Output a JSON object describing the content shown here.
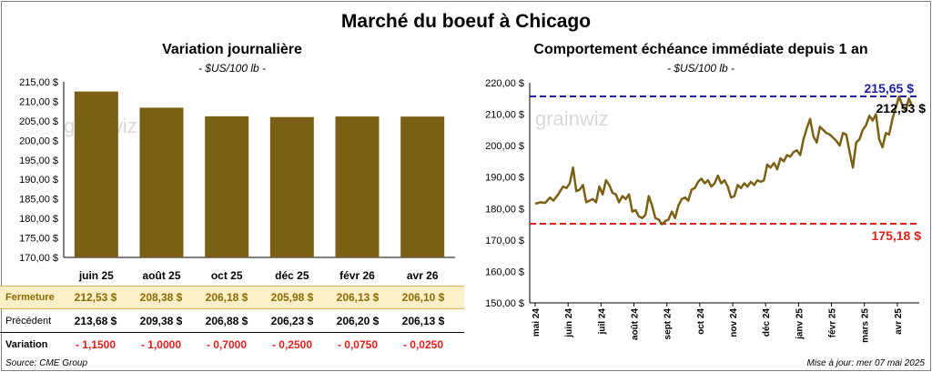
{
  "title": "Marché du boeuf à Chicago",
  "left_panel": {
    "subtitle": "Variation  journalière",
    "unit": "- $US/100 lb -",
    "watermark": "grainwiz"
  },
  "right_panel": {
    "subtitle": "Comportement  échéance immédiate depuis 1 an",
    "unit": "- $US/100 lb -",
    "watermark": "grainwiz"
  },
  "table": {
    "row_fermeture_label": "Fermeture",
    "row_precedent_label": "Précédent",
    "row_variation_label": "Variation",
    "fermeture": [
      "212,53  $",
      "208,38  $",
      "206,18  $",
      "205,98  $",
      "206,13  $",
      "206,10  $"
    ],
    "precedent": [
      "213,68  $",
      "209,38  $",
      "206,88  $",
      "206,23  $",
      "206,20  $",
      "206,13  $"
    ],
    "variation": [
      "- 1,1500",
      "- 1,0000",
      "- 0,7000",
      "- 0,2500",
      "- 0,0750",
      "- 0,0250"
    ]
  },
  "footer": {
    "source": "Source: CME Group",
    "update": "Mise à jour: mer 07 mai 2025"
  },
  "colors": {
    "bar": "#7a6015",
    "line": "#7a6015",
    "high_line": "#1f1fa0",
    "low_line": "#e02020",
    "negative": "#e02020",
    "highlight_row": "#fcefc7"
  },
  "chart_data": [
    {
      "type": "bar",
      "categories": [
        "juin 25",
        "août 25",
        "oct 25",
        "déc 25",
        "févr 26",
        "avr 26"
      ],
      "values": [
        212.53,
        208.38,
        206.18,
        205.98,
        206.13,
        206.1
      ],
      "ylim": [
        170,
        215
      ],
      "yticks": [
        "170,00 $",
        "175,00 $",
        "180,00 $",
        "185,00 $",
        "190,00 $",
        "195,00 $",
        "200,00 $",
        "205,00 $",
        "210,00 $",
        "215,00 $"
      ],
      "grid": false
    },
    {
      "type": "line",
      "ylim": [
        150,
        220
      ],
      "yticks": [
        "150,00 $",
        "160,00 $",
        "170,00 $",
        "180,00 $",
        "190,00 $",
        "200,00 $",
        "210,00 $",
        "220,00 $"
      ],
      "xticks": [
        "mai 24",
        "juin 24",
        "juil 24",
        "août 24",
        "sept 24",
        "oct 24",
        "nov 24",
        "déc 24",
        "janv 25",
        "févr 25",
        "mars 25",
        "avr 25"
      ],
      "series": [
        {
          "x": [
            0,
            0.15,
            0.3,
            0.45,
            0.55,
            0.7,
            0.85,
            0.95,
            1.05,
            1.15,
            1.25,
            1.35,
            1.45,
            1.55,
            1.65,
            1.75,
            1.85,
            1.95,
            2.05,
            2.15,
            2.25,
            2.35,
            2.45,
            2.55,
            2.65,
            2.75,
            2.85,
            2.95,
            3.05,
            3.15,
            3.25,
            3.35,
            3.45,
            3.55,
            3.65,
            3.75,
            3.85,
            3.95,
            4.05,
            4.15,
            4.25,
            4.35,
            4.45,
            4.55,
            4.65,
            4.75,
            4.85,
            4.95,
            5.05,
            5.15,
            5.25,
            5.35,
            5.45,
            5.55,
            5.65,
            5.75,
            5.85,
            5.95,
            6.05,
            6.15,
            6.25,
            6.35,
            6.45,
            6.55,
            6.65,
            6.75,
            6.85,
            6.95,
            7.05,
            7.15,
            7.25,
            7.35,
            7.45,
            7.55,
            7.65,
            7.75,
            7.85,
            7.95,
            8.05,
            8.15,
            8.25,
            8.35,
            8.45,
            8.55,
            8.65,
            8.75,
            8.85,
            8.95,
            9.05,
            9.15,
            9.25,
            9.35,
            9.45,
            9.55,
            9.65,
            9.75,
            9.85,
            9.95,
            10.05,
            10.15,
            10.25,
            10.35,
            10.45,
            10.55,
            10.65,
            10.75,
            10.85,
            10.95,
            11.05,
            11.15,
            11.25,
            11.35,
            11.45
          ],
          "y": [
            181.5,
            182,
            181.8,
            183.5,
            182.5,
            184.5,
            187,
            186.5,
            188,
            193,
            185.5,
            186,
            187.5,
            182,
            182.5,
            183,
            182,
            187,
            184.5,
            189,
            187.5,
            185,
            184.5,
            182,
            184,
            183,
            184.5,
            179,
            179.5,
            177.5,
            177,
            178,
            184,
            181,
            177,
            176.5,
            175,
            176,
            176.5,
            179,
            177,
            181,
            183,
            183.5,
            182.5,
            186,
            186.5,
            188.5,
            189.5,
            188,
            189,
            187,
            188,
            190.5,
            188,
            189,
            187,
            183.5,
            184,
            187.5,
            186.5,
            188,
            187,
            188.5,
            187.5,
            189,
            188.5,
            189,
            194,
            193,
            194.5,
            192.5,
            196,
            195,
            197,
            196.5,
            198,
            198.5,
            197,
            202,
            205.5,
            208.5,
            203,
            201,
            206,
            205,
            204,
            203.5,
            202.5,
            201.5,
            200,
            204,
            203.5,
            198,
            193,
            201,
            202,
            205,
            206.5,
            209.5,
            208,
            210,
            202,
            199.5,
            204,
            203.5,
            208.5,
            212,
            215.6,
            213,
            211,
            215,
            212.53
          ],
          "color": "#7a6015"
        }
      ],
      "annotations": {
        "high": {
          "value": 215.65,
          "label": "215,65 $"
        },
        "low": {
          "value": 175.18,
          "label": "175,18 $"
        },
        "last": {
          "value": 212.53,
          "label": "212,53 $"
        }
      }
    }
  ]
}
